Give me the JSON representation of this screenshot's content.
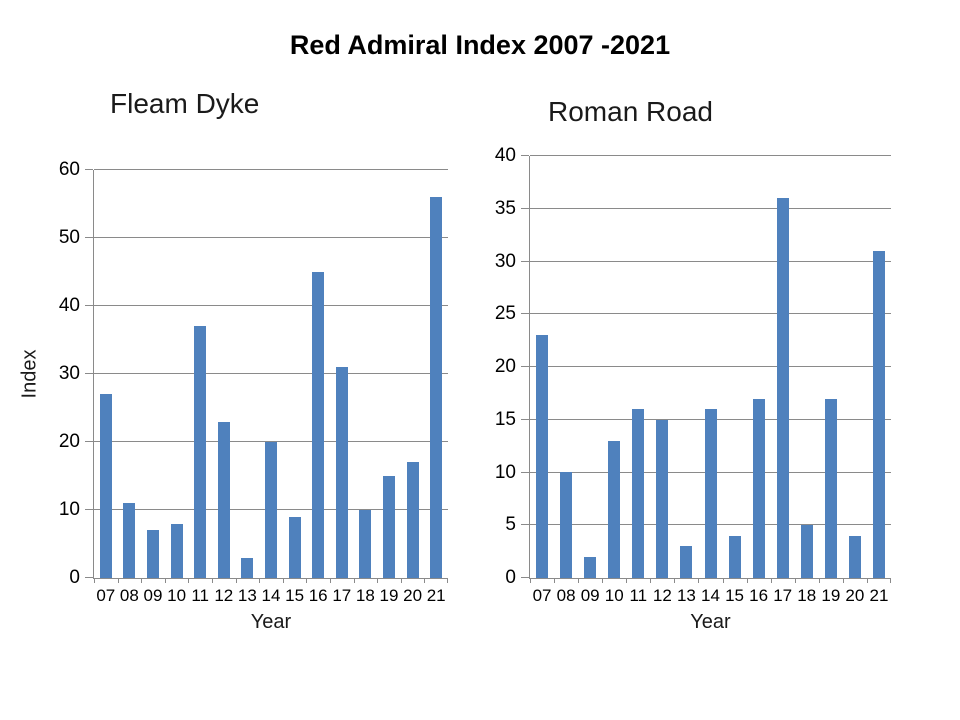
{
  "title": "Red Admiral Index 2007 -2021",
  "chart_data": [
    {
      "type": "bar",
      "title": "Fleam Dyke",
      "xlabel": "Year",
      "ylabel": "Index",
      "categories": [
        "07",
        "08",
        "09",
        "10",
        "11",
        "12",
        "13",
        "14",
        "15",
        "16",
        "17",
        "18",
        "19",
        "20",
        "21"
      ],
      "values": [
        27,
        11,
        7,
        8,
        37,
        23,
        3,
        20,
        9,
        45,
        31,
        10,
        15,
        17,
        56
      ],
      "ylim": [
        0,
        60
      ],
      "ytick_step": 10,
      "bar_color": "#4f81bd",
      "grid": true,
      "legend": false
    },
    {
      "type": "bar",
      "title": "Roman Road",
      "xlabel": "Year",
      "ylabel": "",
      "categories": [
        "07",
        "08",
        "09",
        "10",
        "11",
        "12",
        "13",
        "14",
        "15",
        "16",
        "17",
        "18",
        "19",
        "20",
        "21"
      ],
      "values": [
        23,
        10,
        2,
        13,
        16,
        15,
        3,
        16,
        4,
        17,
        36,
        5,
        17,
        4,
        31
      ],
      "ylim": [
        0,
        40
      ],
      "ytick_step": 5,
      "bar_color": "#4f81bd",
      "grid": true,
      "legend": false
    }
  ]
}
